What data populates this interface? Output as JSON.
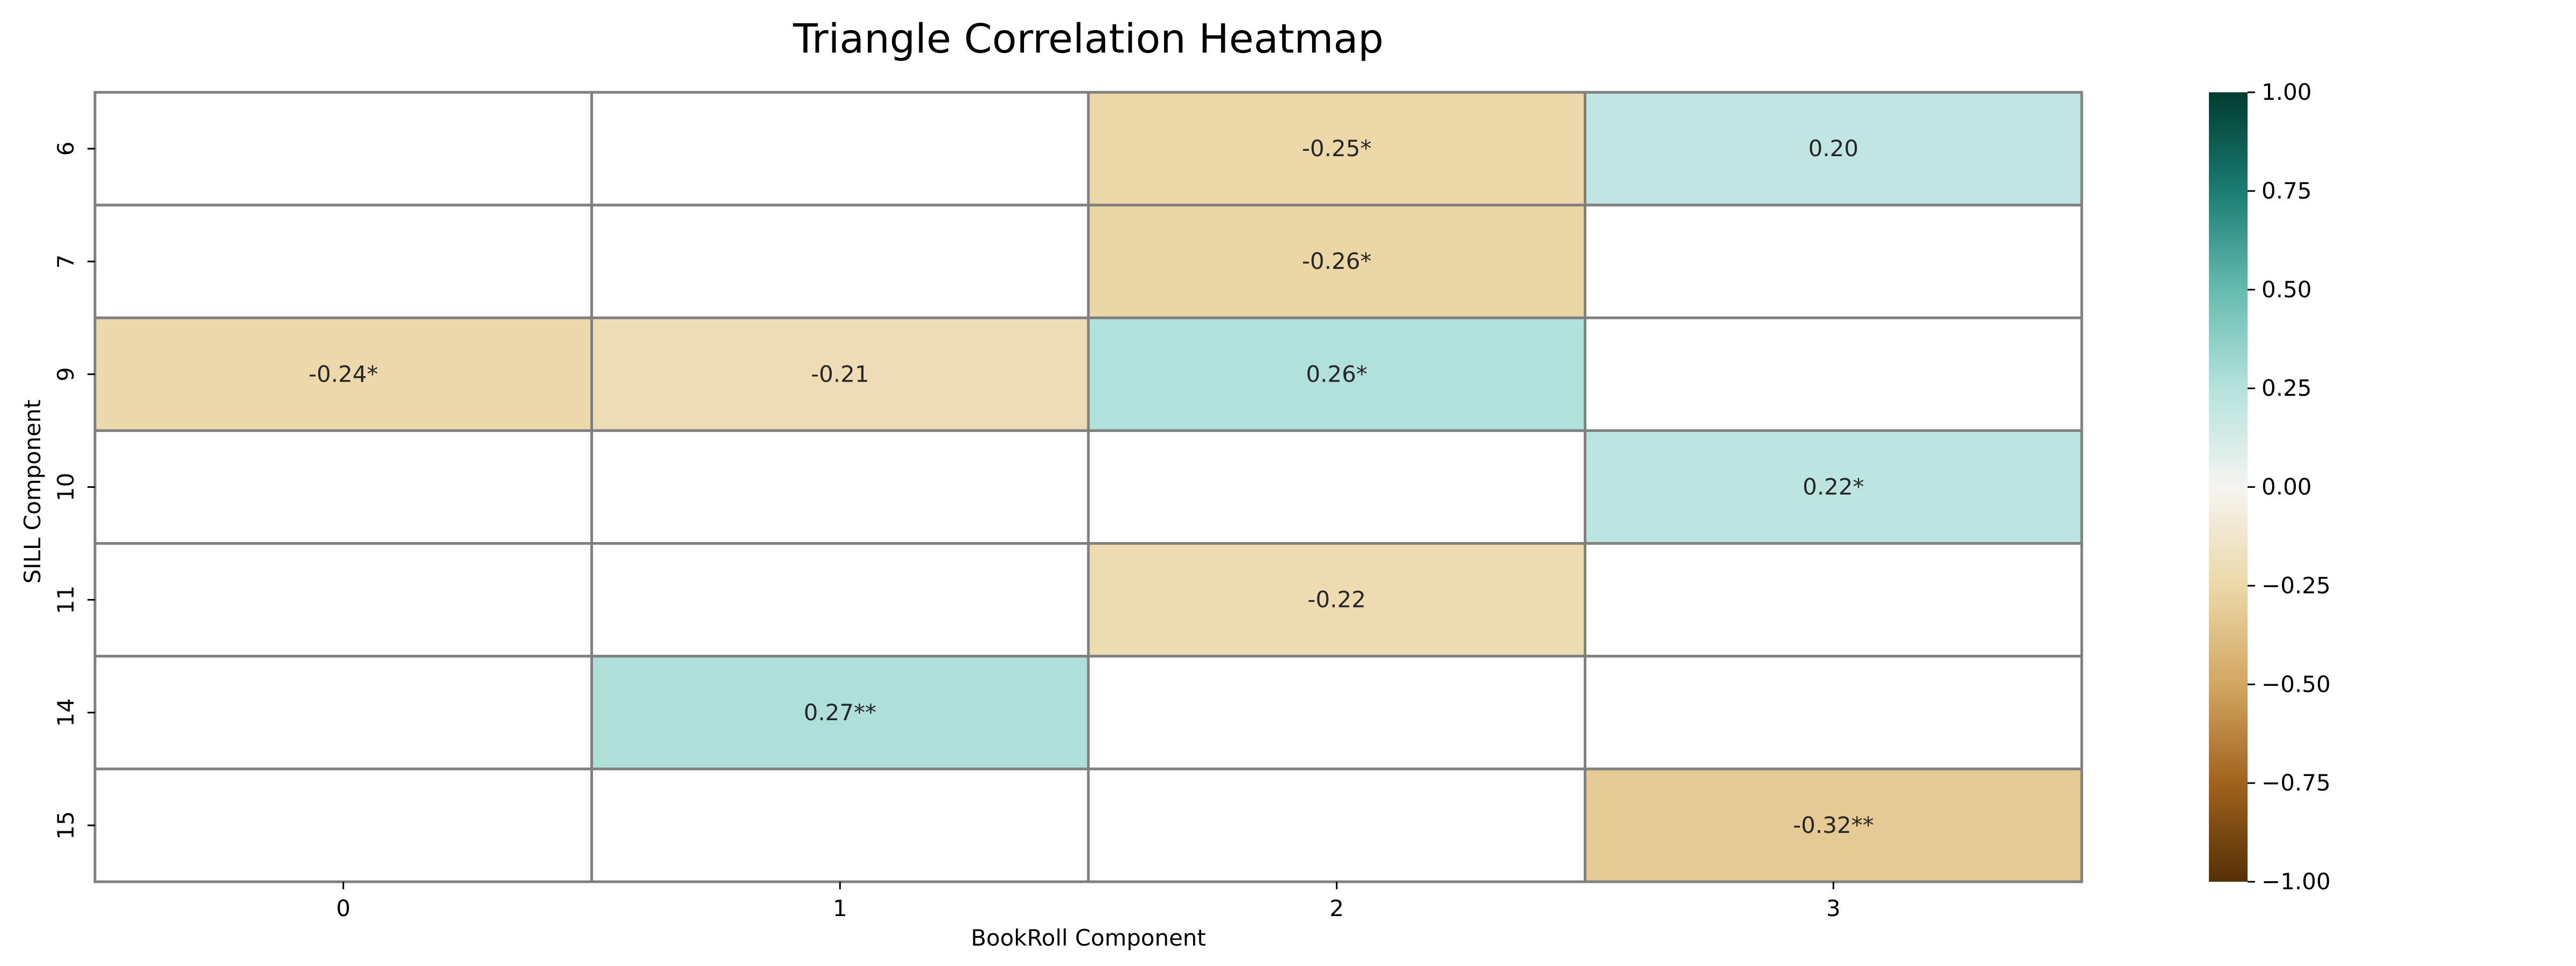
{
  "chart_data": {
    "type": "heatmap",
    "title": "Triangle Correlation Heatmap",
    "xlabel": "BookRoll Component",
    "ylabel": "SILL Component",
    "x_categories": [
      "0",
      "1",
      "2",
      "3"
    ],
    "y_categories": [
      "6",
      "7",
      "9",
      "10",
      "11",
      "14",
      "15"
    ],
    "cells": [
      {
        "row": "6",
        "col": "2",
        "value": -0.25,
        "label": "-0.25*"
      },
      {
        "row": "6",
        "col": "3",
        "value": 0.2,
        "label": "0.20"
      },
      {
        "row": "7",
        "col": "2",
        "value": -0.26,
        "label": "-0.26*"
      },
      {
        "row": "9",
        "col": "0",
        "value": -0.24,
        "label": "-0.24*"
      },
      {
        "row": "9",
        "col": "1",
        "value": -0.21,
        "label": "-0.21"
      },
      {
        "row": "9",
        "col": "2",
        "value": 0.26,
        "label": "0.26*"
      },
      {
        "row": "10",
        "col": "3",
        "value": 0.22,
        "label": "0.22*"
      },
      {
        "row": "11",
        "col": "2",
        "value": -0.22,
        "label": "-0.22"
      },
      {
        "row": "14",
        "col": "1",
        "value": 0.27,
        "label": "0.27**"
      },
      {
        "row": "15",
        "col": "3",
        "value": -0.32,
        "label": "-0.32**"
      }
    ],
    "colorbar": {
      "colormap": "BrBG",
      "range": [
        -1.0,
        1.0
      ],
      "ticks": [
        "1.00",
        "0.75",
        "0.50",
        "0.25",
        "0.00",
        "−0.25",
        "−0.50",
        "−0.75",
        "−1.00"
      ]
    },
    "grid": true,
    "grid_color": "#808080"
  }
}
